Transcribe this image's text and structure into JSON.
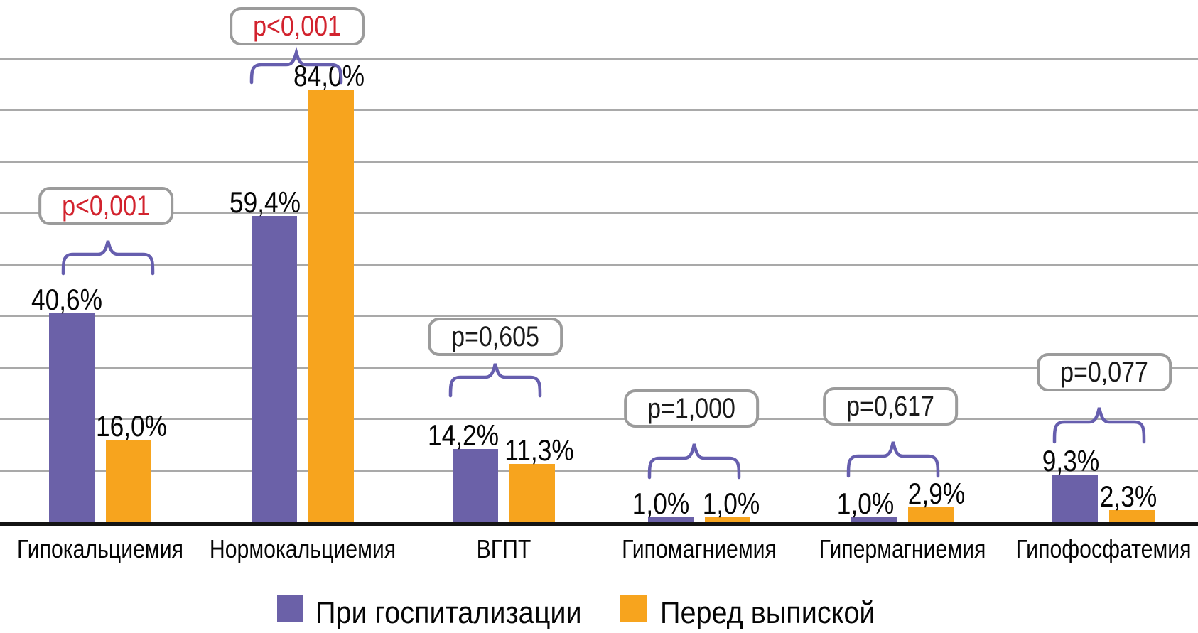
{
  "chart_data": {
    "type": "bar",
    "title": "",
    "xlabel": "",
    "ylabel": "",
    "ylim": [
      0,
      100
    ],
    "grid": {
      "visible": true,
      "step": 10,
      "max": 90
    },
    "legend_position": "bottom",
    "categories": [
      "Гипокальциемия",
      "Нормокальциемия",
      "ВГПТ",
      "Гипомагниемия",
      "Гипермагниемия",
      "Гипофосфатемия"
    ],
    "series": [
      {
        "name": "При госпитализации",
        "color": "#6B61A8",
        "values": [
          40.6,
          59.4,
          14.2,
          1.0,
          1.0,
          9.3
        ],
        "labels": [
          "40,6%",
          "59,4%",
          "14,2%",
          "1,0%",
          "1,0%",
          "9,3%"
        ]
      },
      {
        "name": "Перед выпиской",
        "color": "#F7A41E",
        "values": [
          16.0,
          84.0,
          11.3,
          1.0,
          2.9,
          2.3
        ],
        "labels": [
          "16,0%",
          "84,0%",
          "11,3%",
          "1,0%",
          "2,9%",
          "2,3%"
        ]
      }
    ],
    "p_values": [
      {
        "label": "p<0,001",
        "color": "#D2232E"
      },
      {
        "label": "p<0,001",
        "color": "#D2232E"
      },
      {
        "label": "p=0,605",
        "color": "#1A1A1A"
      },
      {
        "label": "p=1,000",
        "color": "#1A1A1A"
      },
      {
        "label": "p=0,617",
        "color": "#1A1A1A"
      },
      {
        "label": "p=0,077",
        "color": "#1A1A1A"
      }
    ],
    "annotation_colors": {
      "box_border": "#9B9B9B",
      "brace": "#665EAE",
      "gridline": "#A9A9A9",
      "axis": "#141414"
    }
  }
}
